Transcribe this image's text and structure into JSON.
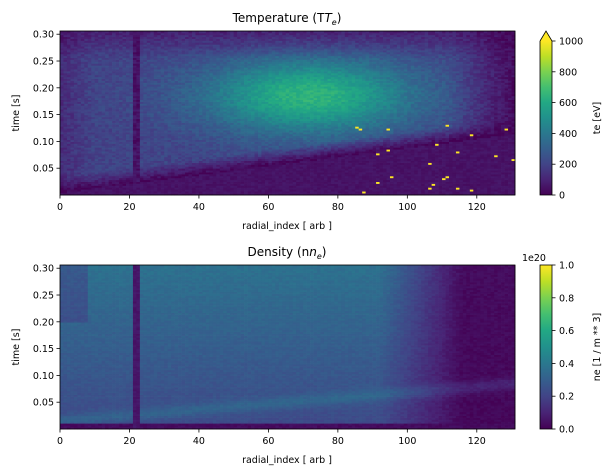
{
  "chart_data": [
    {
      "type": "heatmap",
      "title": "Temperature (T",
      "title_sub": "e",
      "title_end": ")",
      "xlabel": "radial_index [ arb ]",
      "ylabel": "time [s]",
      "xlim": [
        0,
        131
      ],
      "ylim": [
        0.0,
        0.306
      ],
      "xticks": [
        "0",
        "20",
        "40",
        "60",
        "80",
        "100",
        "120"
      ],
      "xtick_values": [
        0,
        20,
        40,
        60,
        80,
        100,
        120
      ],
      "yticks": [
        "0.05",
        "0.10",
        "0.15",
        "0.20",
        "0.25",
        "0.30"
      ],
      "ytick_values": [
        0.05,
        0.1,
        0.15,
        0.2,
        0.25,
        0.3
      ],
      "colormap": "viridis",
      "colorbar": {
        "label": "te [eV]",
        "range": [
          0,
          1000
        ],
        "ticks": [
          "0",
          "200",
          "400",
          "600",
          "800",
          "1000"
        ],
        "tick_values": [
          0,
          200,
          400,
          600,
          800,
          1000
        ],
        "extend": "max",
        "offset_text": ""
      },
      "features": {
        "low_column_at_radial_index": 22,
        "edge_front": "heated region starts near time ~0 at radial_index ~20 and spreads to the edge by time ~0.11",
        "peak_region": "radial_index ~60-85, time ~0.15-0.20, about 600-750 eV"
      }
    },
    {
      "type": "heatmap",
      "title": "Density (n",
      "title_sub": "e",
      "title_end": ")",
      "xlabel": "radial_index [ arb ]",
      "ylabel": "time [s]",
      "xlim": [
        0,
        131
      ],
      "ylim": [
        0.0,
        0.306
      ],
      "xticks": [
        "0",
        "20",
        "40",
        "60",
        "80",
        "100",
        "120"
      ],
      "xtick_values": [
        0,
        20,
        40,
        60,
        80,
        100,
        120
      ],
      "yticks": [
        "0.05",
        "0.10",
        "0.15",
        "0.20",
        "0.25",
        "0.30"
      ],
      "ytick_values": [
        0.05,
        0.1,
        0.15,
        0.2,
        0.25,
        0.3
      ],
      "colormap": "viridis",
      "colorbar": {
        "label": "ne [1 / m ** 3]",
        "range": [
          0.0,
          1.0
        ],
        "ticks": [
          "0.0",
          "0.2",
          "0.4",
          "0.6",
          "0.8",
          "1.0"
        ],
        "tick_values": [
          0.0,
          0.2,
          0.4,
          0.6,
          0.8,
          1.0
        ],
        "extend": "neither",
        "offset_text": "1e20"
      },
      "features": {
        "low_column_at_radial_index": 22,
        "core_region": "radial_index ~0-100, time ~0.15-0.30, about 0.40-0.45 x 1e20",
        "edge": "low density (<0.1 x 1e20) outside radial_index ~110"
      }
    }
  ]
}
